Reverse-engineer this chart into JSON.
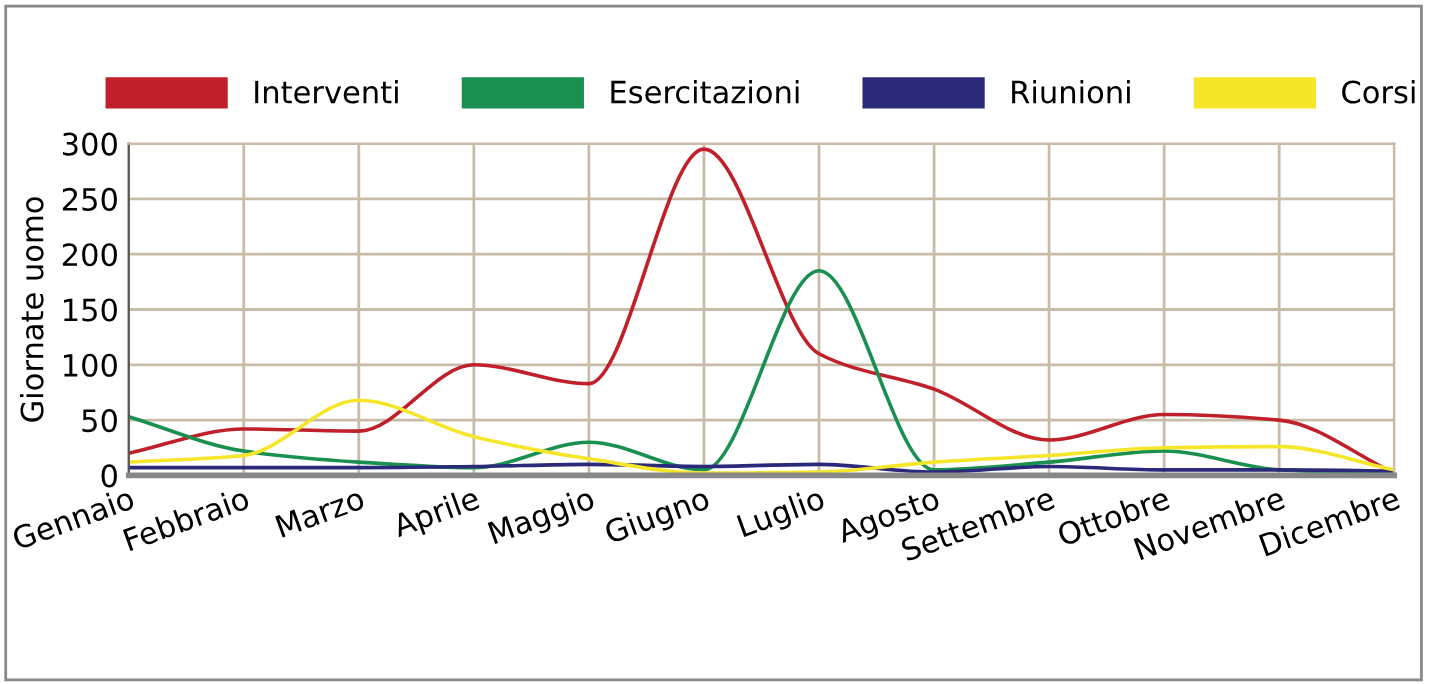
{
  "chart_data": {
    "type": "line",
    "ylabel": "Giornate uomo",
    "categories": [
      "Gennaio",
      "Febbraio",
      "Marzo",
      "Aprile",
      "Maggio",
      "Giugno",
      "Luglio",
      "Agosto",
      "Settembre",
      "Ottobre",
      "Novembre",
      "Dicembre"
    ],
    "series": [
      {
        "name": "Interventi",
        "color": "#c0202a",
        "values": [
          20,
          42,
          40,
          100,
          83,
          295,
          110,
          78,
          32,
          55,
          50,
          2
        ]
      },
      {
        "name": "Esercitazioni",
        "color": "#1a9050",
        "values": [
          53,
          22,
          12,
          7,
          30,
          5,
          185,
          5,
          12,
          22,
          5,
          2
        ]
      },
      {
        "name": "Riunioni",
        "color": "#2b2a7a",
        "values": [
          7,
          7,
          7,
          8,
          10,
          8,
          10,
          3,
          8,
          5,
          5,
          4
        ]
      },
      {
        "name": "Corsi",
        "color": "#f5e62a",
        "values": [
          12,
          18,
          68,
          35,
          15,
          2,
          3,
          12,
          18,
          25,
          26,
          5
        ]
      }
    ],
    "ylim": [
      0,
      300
    ],
    "yticks": [
      0,
      50,
      100,
      150,
      200,
      250,
      300
    ],
    "grid": true,
    "legend": "top",
    "marker": "none",
    "line_style": "solid"
  }
}
